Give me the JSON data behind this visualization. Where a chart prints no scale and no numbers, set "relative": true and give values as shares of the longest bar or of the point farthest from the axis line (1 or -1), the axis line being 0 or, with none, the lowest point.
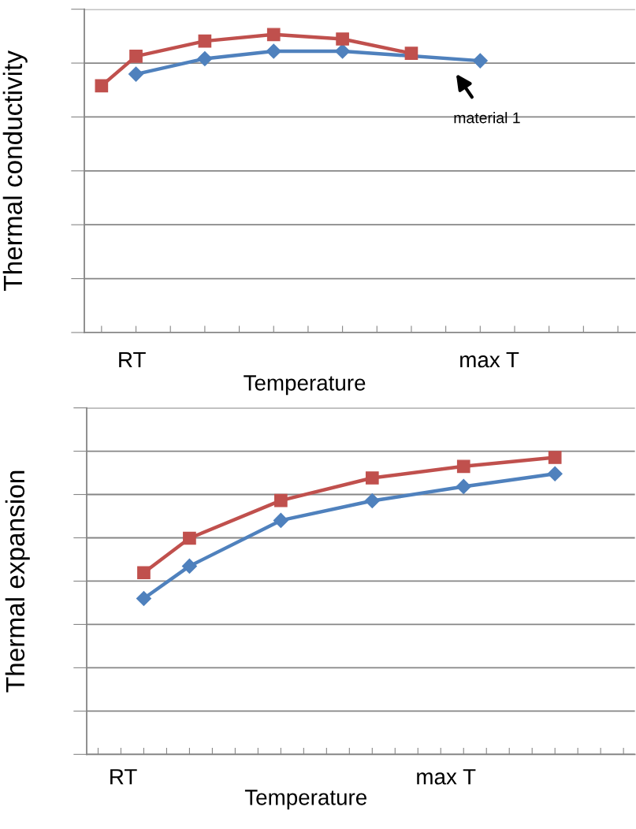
{
  "chart_data": [
    {
      "type": "line",
      "relative": true,
      "ylabel": "Thermal conductivity",
      "xlabel": "Temperature",
      "grid": "y",
      "line_style": "solid",
      "categories": [
        null,
        null,
        null,
        null,
        null,
        null,
        null,
        null,
        null,
        null,
        null,
        null,
        null,
        null,
        null,
        null
      ],
      "series": [
        {
          "color": "#4f81bd",
          "marker": "diamond",
          "values": [
            null,
            0.867,
            null,
            0.919,
            null,
            0.944,
            null,
            0.944,
            null,
            null,
            null,
            0.912,
            null,
            null,
            null,
            null
          ]
        },
        {
          "color": "#c0504d",
          "marker": "square",
          "values": [
            0.828,
            0.927,
            null,
            0.978,
            null,
            1.0,
            null,
            0.985,
            null,
            0.937,
            null,
            null,
            null,
            null,
            null,
            null
          ]
        }
      ],
      "annotations": [
        "RT",
        "max T",
        "material 1"
      ]
    },
    {
      "type": "line",
      "relative": true,
      "ylabel": "Thermal expansion",
      "xlabel": "Temperature",
      "grid": "y",
      "line_style": "solid",
      "categories": [
        null,
        null,
        null,
        null,
        null,
        null,
        null,
        null,
        null,
        null,
        null,
        null,
        null,
        null,
        null,
        null,
        null,
        null,
        null,
        null,
        null,
        null,
        null,
        null
      ],
      "series": [
        {
          "color": "#4f81bd",
          "marker": "diamond",
          "values": [
            null,
            null,
            0.525,
            null,
            0.634,
            null,
            null,
            null,
            0.788,
            null,
            null,
            null,
            0.854,
            null,
            null,
            null,
            0.902,
            null,
            null,
            null,
            0.945,
            null,
            null,
            null
          ]
        },
        {
          "color": "#c0504d",
          "marker": "square",
          "values": [
            null,
            null,
            0.612,
            null,
            0.728,
            null,
            null,
            null,
            0.855,
            null,
            null,
            null,
            0.931,
            null,
            null,
            null,
            0.97,
            null,
            null,
            null,
            1.0,
            null,
            null,
            null
          ]
        }
      ],
      "annotations": [
        "RT",
        "max T"
      ]
    }
  ]
}
